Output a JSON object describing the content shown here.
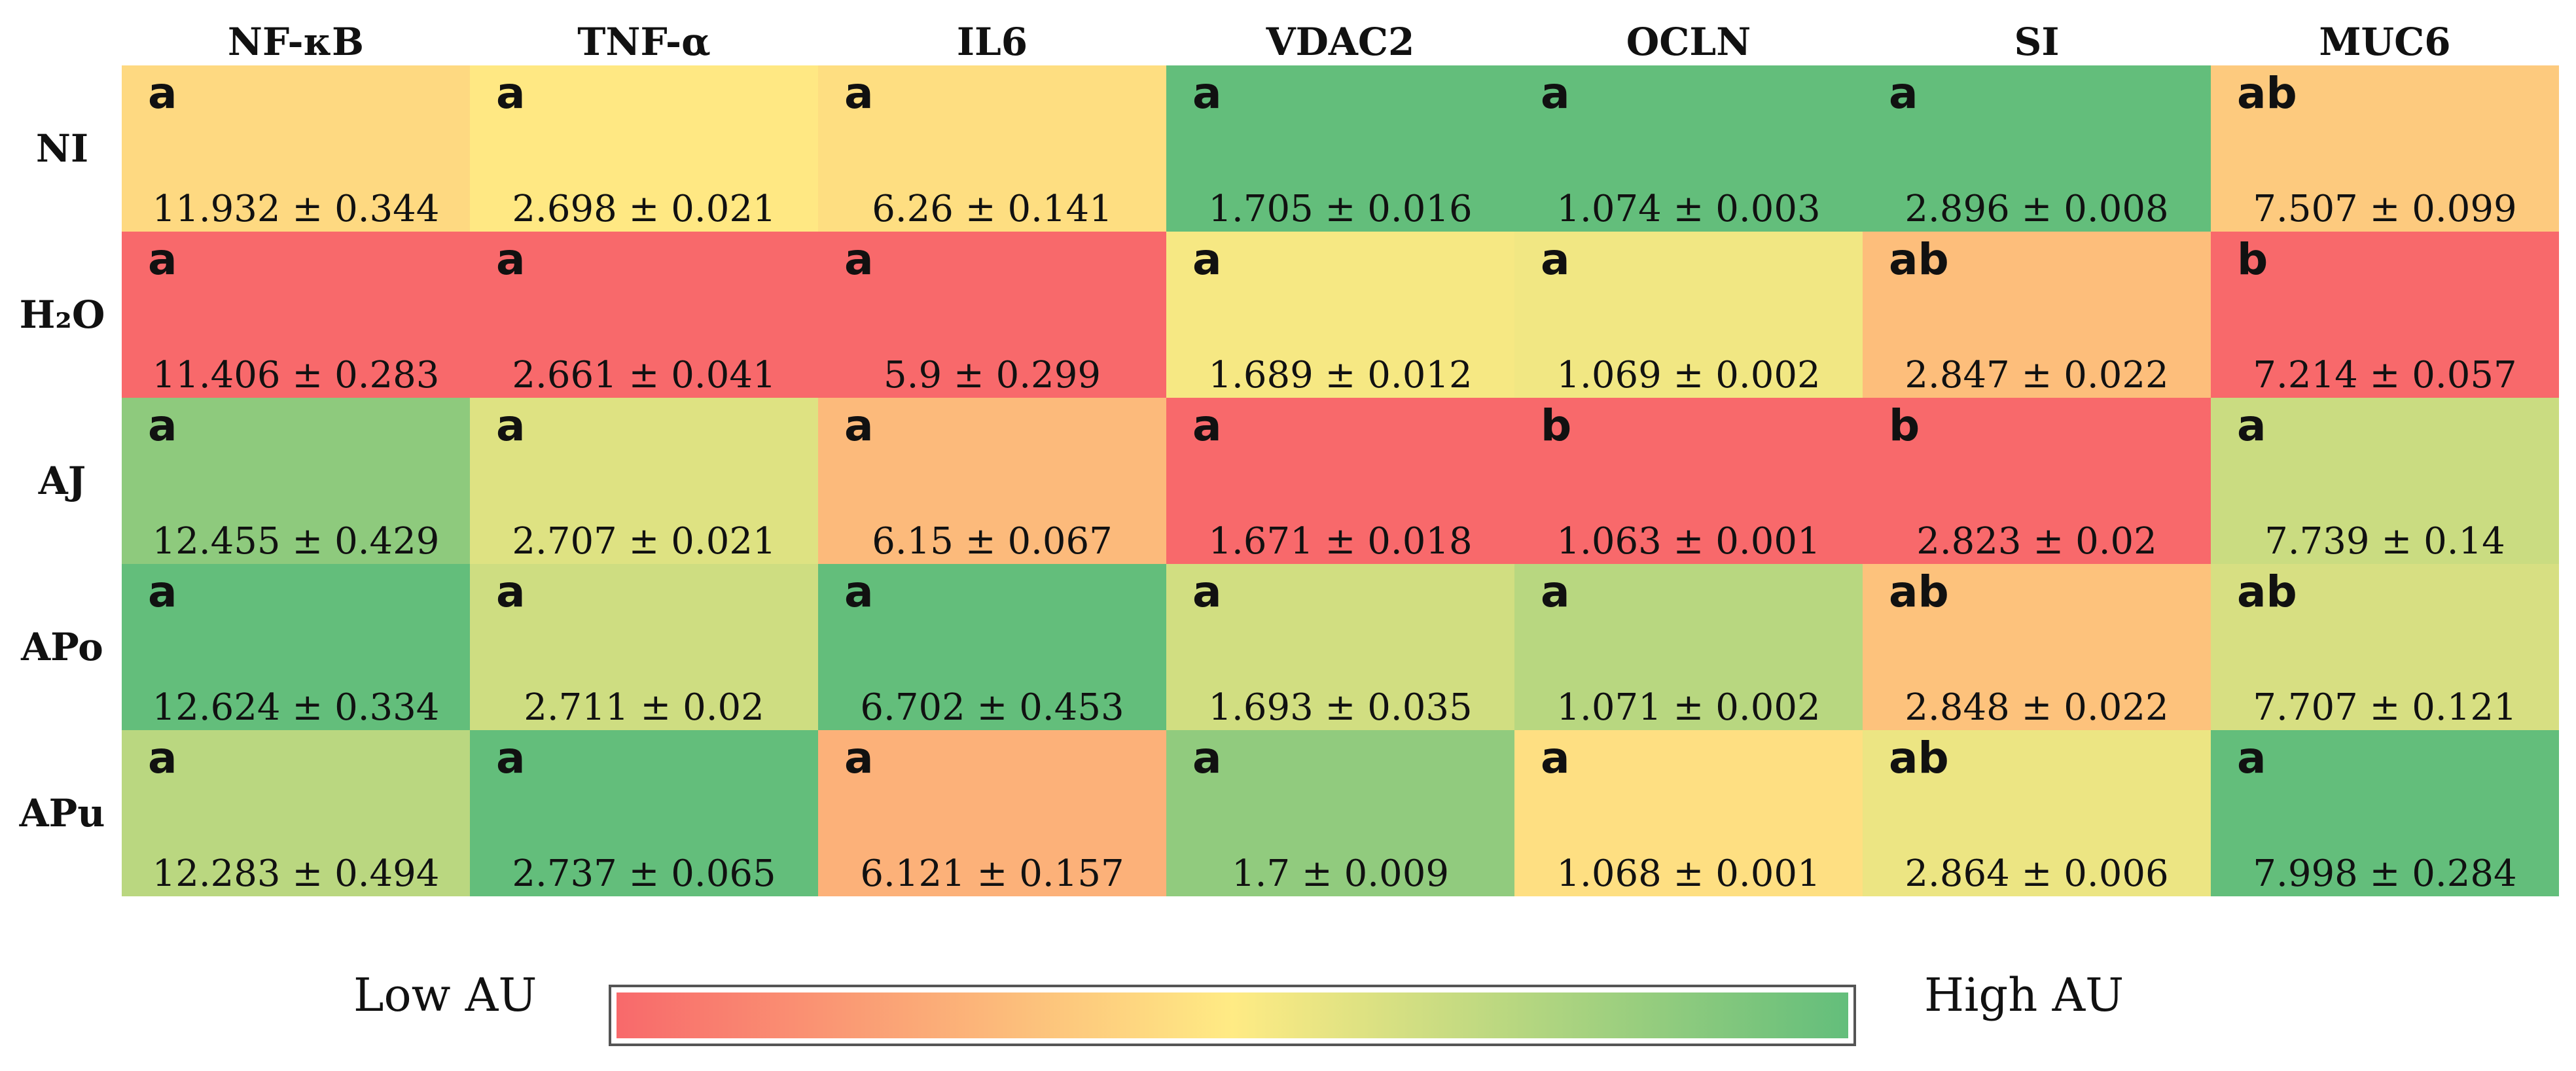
{
  "chart_data": {
    "type": "heatmap",
    "title": "",
    "columns": [
      "NF-κB",
      "TNF-α",
      "IL6",
      "VDAC2",
      "OCLN",
      "SI",
      "MUC6"
    ],
    "rows": [
      "NI",
      "H2O",
      "AJ",
      "APo",
      "APu"
    ],
    "row_labels": {
      "NI": "NI",
      "H2O": "H₂O",
      "AJ": "AJ",
      "APo": "APo",
      "APu": "APu"
    },
    "cells": [
      [
        {
          "mean": 11.932,
          "sd": 0.344,
          "text": "11.932 ± 0.344",
          "letter": "a"
        },
        {
          "mean": 2.698,
          "sd": 0.021,
          "text": "2.698 ± 0.021",
          "letter": "a"
        },
        {
          "mean": 6.26,
          "sd": 0.141,
          "text": "6.26 ± 0.141",
          "letter": "a"
        },
        {
          "mean": 1.705,
          "sd": 0.016,
          "text": "1.705 ± 0.016",
          "letter": "a"
        },
        {
          "mean": 1.074,
          "sd": 0.003,
          "text": "1.074 ± 0.003",
          "letter": "a"
        },
        {
          "mean": 2.896,
          "sd": 0.008,
          "text": "2.896 ± 0.008",
          "letter": "a"
        },
        {
          "mean": 7.507,
          "sd": 0.099,
          "text": "7.507 ± 0.099",
          "letter": "ab"
        }
      ],
      [
        {
          "mean": 11.406,
          "sd": 0.283,
          "text": "11.406 ± 0.283",
          "letter": "a"
        },
        {
          "mean": 2.661,
          "sd": 0.041,
          "text": "2.661 ± 0.041",
          "letter": "a"
        },
        {
          "mean": 5.9,
          "sd": 0.299,
          "text": "5.9 ± 0.299",
          "letter": "a"
        },
        {
          "mean": 1.689,
          "sd": 0.012,
          "text": "1.689 ± 0.012",
          "letter": "a"
        },
        {
          "mean": 1.069,
          "sd": 0.002,
          "text": "1.069 ± 0.002",
          "letter": "a"
        },
        {
          "mean": 2.847,
          "sd": 0.022,
          "text": "2.847 ± 0.022",
          "letter": "ab"
        },
        {
          "mean": 7.214,
          "sd": 0.057,
          "text": "7.214 ± 0.057",
          "letter": "b"
        }
      ],
      [
        {
          "mean": 12.455,
          "sd": 0.429,
          "text": "12.455 ± 0.429",
          "letter": "a"
        },
        {
          "mean": 2.707,
          "sd": 0.021,
          "text": "2.707 ± 0.021",
          "letter": "a"
        },
        {
          "mean": 6.15,
          "sd": 0.067,
          "text": "6.15 ± 0.067",
          "letter": "a"
        },
        {
          "mean": 1.671,
          "sd": 0.018,
          "text": "1.671 ± 0.018",
          "letter": "a"
        },
        {
          "mean": 1.063,
          "sd": 0.001,
          "text": "1.063 ± 0.001",
          "letter": "b"
        },
        {
          "mean": 2.823,
          "sd": 0.02,
          "text": "2.823 ± 0.02",
          "letter": "b"
        },
        {
          "mean": 7.739,
          "sd": 0.14,
          "text": "7.739 ± 0.14",
          "letter": "a"
        }
      ],
      [
        {
          "mean": 12.624,
          "sd": 0.334,
          "text": "12.624 ± 0.334",
          "letter": "a"
        },
        {
          "mean": 2.711,
          "sd": 0.02,
          "text": "2.711 ± 0.02",
          "letter": "a"
        },
        {
          "mean": 6.702,
          "sd": 0.453,
          "text": "6.702 ± 0.453",
          "letter": "a"
        },
        {
          "mean": 1.693,
          "sd": 0.035,
          "text": "1.693 ± 0.035",
          "letter": "a"
        },
        {
          "mean": 1.071,
          "sd": 0.002,
          "text": "1.071 ± 0.002",
          "letter": "a"
        },
        {
          "mean": 2.848,
          "sd": 0.022,
          "text": "2.848 ± 0.022",
          "letter": "ab"
        },
        {
          "mean": 7.707,
          "sd": 0.121,
          "text": "7.707 ± 0.121",
          "letter": "ab"
        }
      ],
      [
        {
          "mean": 12.283,
          "sd": 0.494,
          "text": "12.283 ± 0.494",
          "letter": "a"
        },
        {
          "mean": 2.737,
          "sd": 0.065,
          "text": "2.737 ± 0.065",
          "letter": "a"
        },
        {
          "mean": 6.121,
          "sd": 0.157,
          "text": "6.121 ± 0.157",
          "letter": "a"
        },
        {
          "mean": 1.7,
          "sd": 0.009,
          "text": "1.7 ± 0.009",
          "letter": "a"
        },
        {
          "mean": 1.068,
          "sd": 0.001,
          "text": "1.068 ± 0.001",
          "letter": "a"
        },
        {
          "mean": 2.864,
          "sd": 0.006,
          "text": "2.864 ± 0.006",
          "letter": "ab"
        },
        {
          "mean": 7.998,
          "sd": 0.284,
          "text": "7.998 ± 0.284",
          "letter": "a"
        }
      ]
    ],
    "color_scale": {
      "type": "per-column",
      "low_label": "Low AU",
      "high_label": "High AU",
      "low_color": "#f8696b",
      "mid_color": "#ffeb84",
      "high_color": "#63be7b"
    }
  }
}
